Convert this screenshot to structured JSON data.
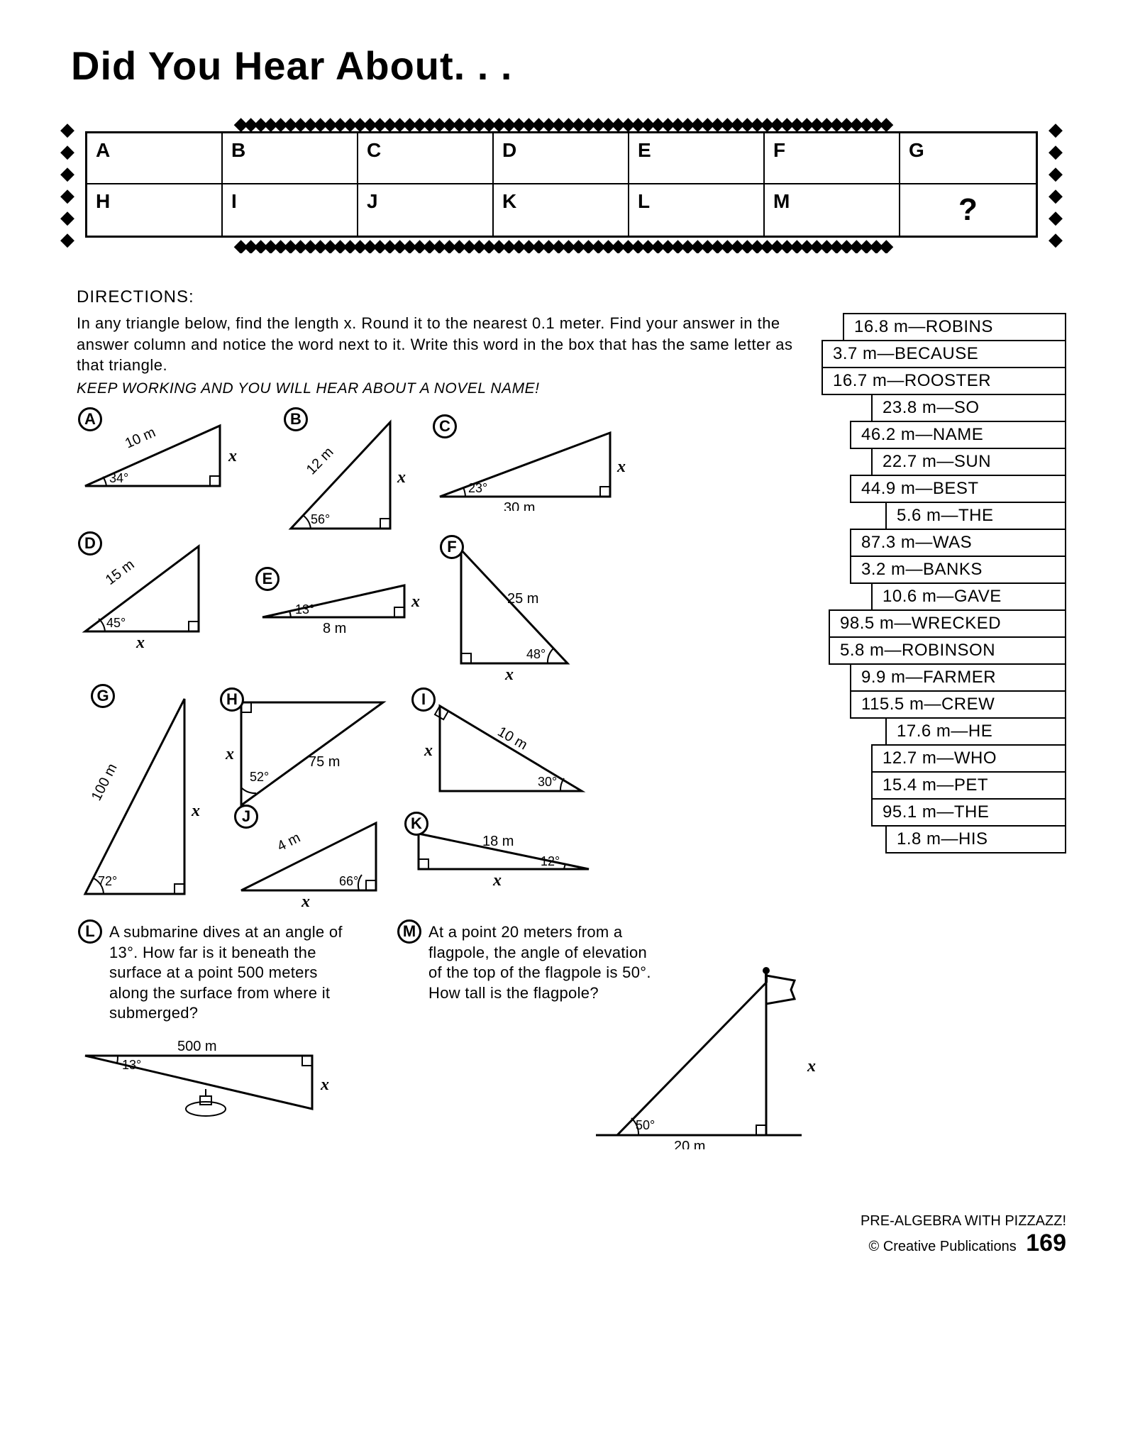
{
  "title": "Did You Hear About. . .",
  "grid": {
    "row1": [
      "A",
      "B",
      "C",
      "D",
      "E",
      "F",
      "G"
    ],
    "row2": [
      "H",
      "I",
      "J",
      "K",
      "L",
      "M",
      "?"
    ]
  },
  "directions_label": "DIRECTIONS:",
  "directions_text": "In any triangle below, find the length x. Round it to the nearest 0.1 meter. Find your answer in the answer column and notice the word next to it. Write this word in the box that has the same letter as that triangle.",
  "directions_italic": "KEEP WORKING AND YOU WILL HEAR ABOUT A NOVEL NAME!",
  "answers": [
    {
      "v": "16.8 m—ROBINS",
      "cls": "r1"
    },
    {
      "v": "3.7 m—BECAUSE",
      "cls": "r2"
    },
    {
      "v": "16.7 m—ROOSTER",
      "cls": "r2"
    },
    {
      "v": "23.8 m—SO",
      "cls": "r3"
    },
    {
      "v": "46.2 m—NAME",
      "cls": "r4"
    },
    {
      "v": "22.7 m—SUN",
      "cls": "r3"
    },
    {
      "v": "44.9 m—BEST",
      "cls": "r4"
    },
    {
      "v": "5.6 m—THE",
      "cls": "r5"
    },
    {
      "v": "87.3 m—WAS",
      "cls": "r4"
    },
    {
      "v": "3.2 m—BANKS",
      "cls": "r4"
    },
    {
      "v": "10.6 m—GAVE",
      "cls": "r3"
    },
    {
      "v": "98.5 m—WRECKED",
      "cls": "r6"
    },
    {
      "v": "5.8 m—ROBINSON",
      "cls": "r6"
    },
    {
      "v": "9.9 m—FARMER",
      "cls": "r4"
    },
    {
      "v": "115.5 m—CREW",
      "cls": "r4"
    },
    {
      "v": "17.6 m—HE",
      "cls": "r5"
    },
    {
      "v": "12.7 m—WHO",
      "cls": "r3"
    },
    {
      "v": "15.4 m—PET",
      "cls": "r3"
    },
    {
      "v": "95.1 m—THE",
      "cls": "r3"
    },
    {
      "v": "1.8 m—HIS",
      "cls": "r5"
    }
  ],
  "triangles": {
    "A": {
      "hyp": "10 m",
      "ang": "34°",
      "x": "x"
    },
    "B": {
      "hyp": "12 m",
      "ang": "56°",
      "x": "x"
    },
    "C": {
      "base": "30 m",
      "ang": "23°",
      "x": "x"
    },
    "D": {
      "hyp": "15 m",
      "ang": "45°",
      "x": "x"
    },
    "E": {
      "base": "8 m",
      "ang": "13°",
      "x": "x"
    },
    "F": {
      "hyp": "25 m",
      "ang": "48°",
      "x": "x"
    },
    "G": {
      "hyp": "100 m",
      "ang": "72°",
      "x": "x"
    },
    "H": {
      "hyp": "75 m",
      "ang": "52°",
      "x": "x"
    },
    "I": {
      "hyp": "10 m",
      "ang": "30°",
      "x": "x"
    },
    "J": {
      "hyp": "4 m",
      "ang": "66°",
      "x": "x"
    },
    "K": {
      "hyp": "18 m",
      "ang": "12°",
      "x": "x"
    }
  },
  "wordL": {
    "label": "L",
    "text": "A submarine dives at an angle of 13°. How far is it beneath the surface at a point 500 meters along the surface from where it submerged?",
    "base": "500 m",
    "ang": "13°",
    "x": "x"
  },
  "wordM": {
    "label": "M",
    "text": "At a point 20 meters from a flagpole, the angle of elevation of the top of the flagpole is 50°. How tall is the flagpole?",
    "base": "20 m",
    "ang": "50°",
    "x": "x"
  },
  "footer": {
    "line1": "PRE-ALGEBRA WITH PIZZAZZ!",
    "line2": "© Creative Publications",
    "page": "169"
  }
}
